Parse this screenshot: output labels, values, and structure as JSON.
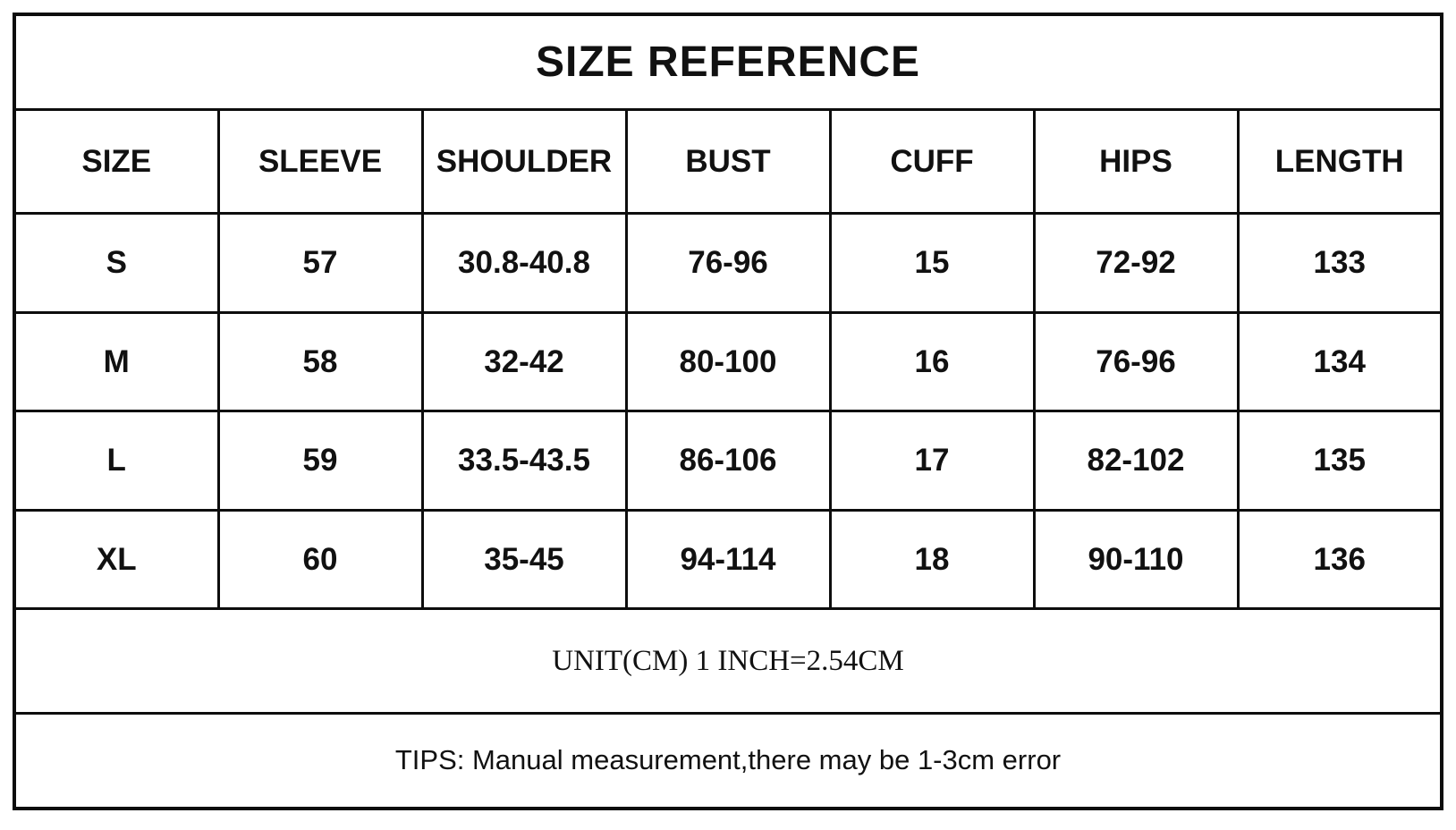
{
  "title": "SIZE REFERENCE",
  "table": {
    "headers": [
      "SIZE",
      "SLEEVE",
      "SHOULDER",
      "BUST",
      "CUFF",
      "HIPS",
      "LENGTH"
    ],
    "rows": [
      [
        "S",
        "57",
        "30.8-40.8",
        "76-96",
        "15",
        "72-92",
        "133"
      ],
      [
        "M",
        "58",
        "32-42",
        "80-100",
        "16",
        "76-96",
        "134"
      ],
      [
        "L",
        "59",
        "33.5-43.5",
        "86-106",
        "17",
        "82-102",
        "135"
      ],
      [
        "XL",
        "60",
        "35-45",
        "94-114",
        "18",
        "90-110",
        "136"
      ]
    ]
  },
  "footer": {
    "unit_note": "UNIT(CM) 1 INCH=2.54CM",
    "tips_note": "TIPS: Manual measurement,there may be 1-3cm error"
  },
  "colors": {
    "border": "#0d0d0d",
    "background": "#ffffff",
    "text": "#111111"
  }
}
